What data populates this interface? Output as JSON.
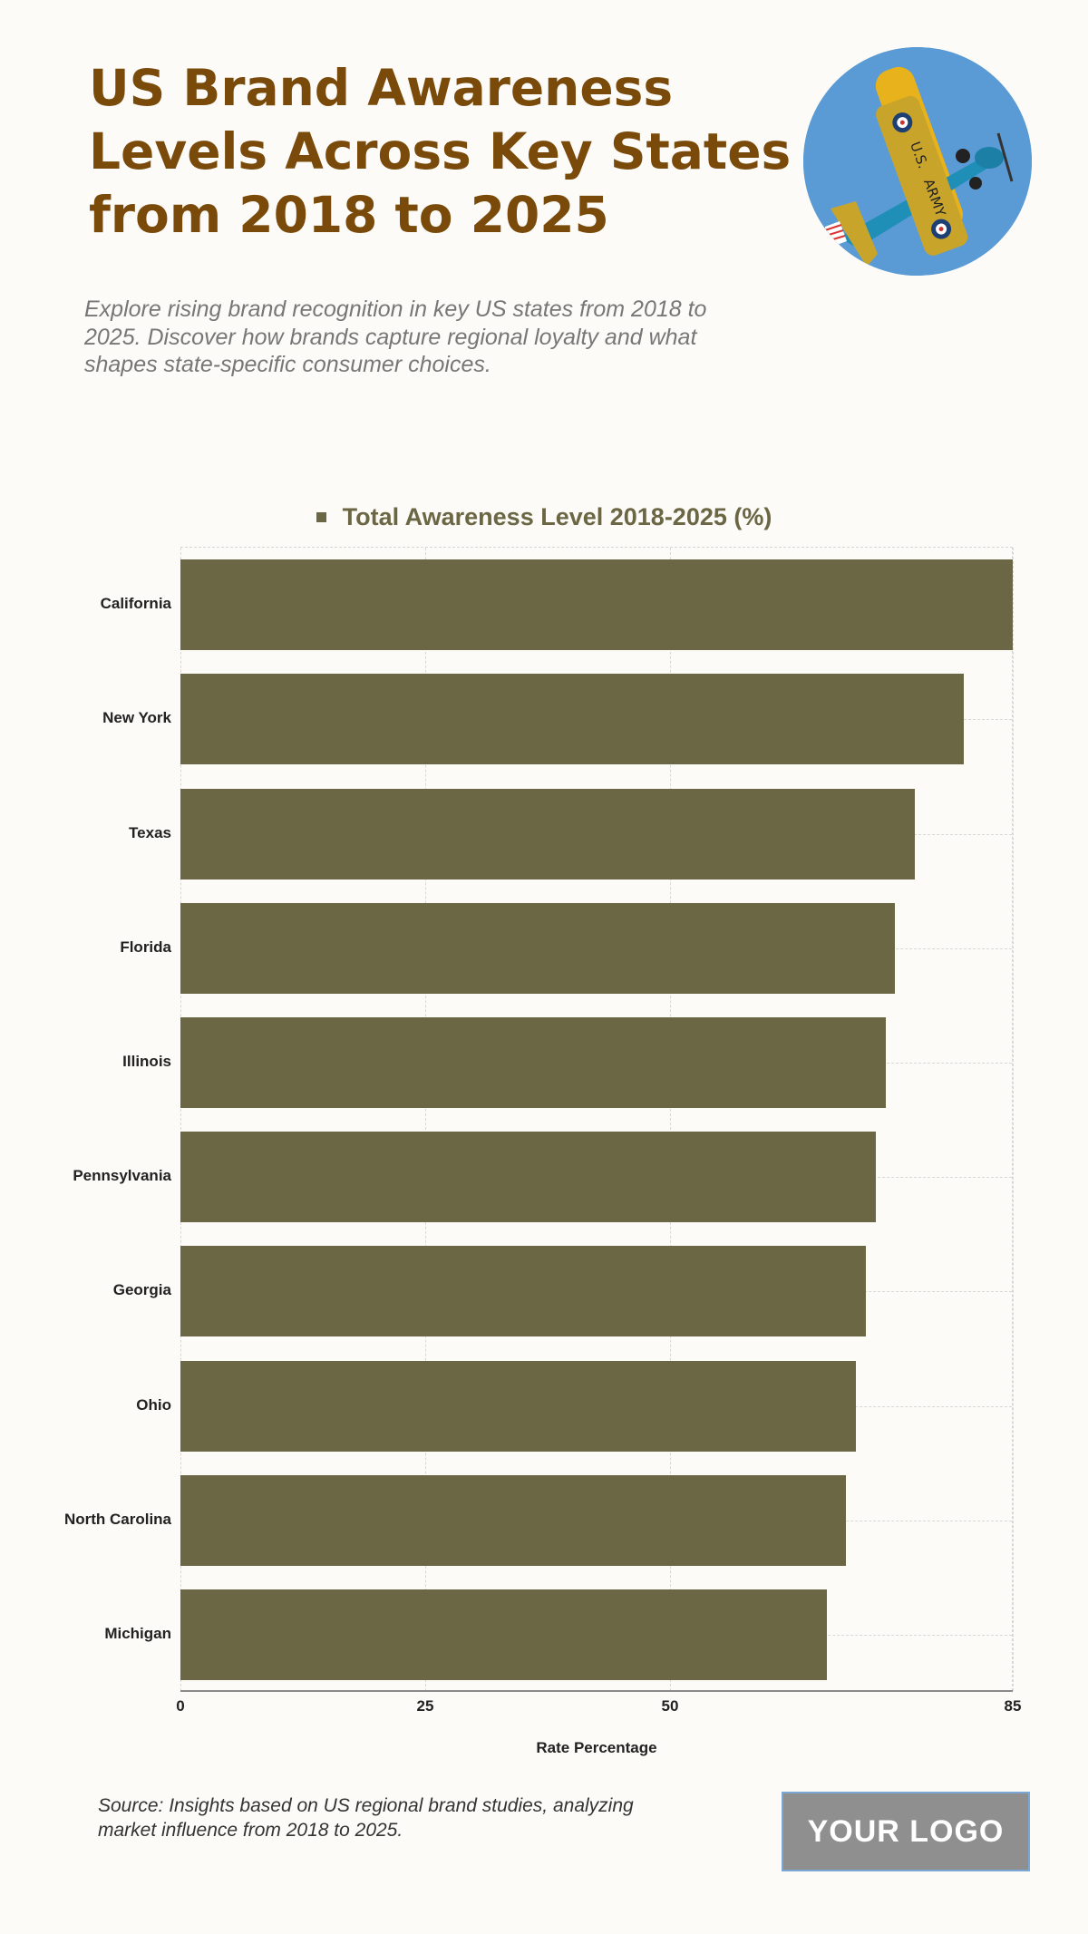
{
  "header": {
    "title_lines": [
      "US Brand Awareness",
      "Levels Across Key States",
      "from 2018 to 2025"
    ],
    "description_lines": [
      "Explore rising brand recognition in key US states from 2018 to",
      "2025. Discover how brands capture regional loyalty and what",
      "shapes state-specific consumer choices."
    ],
    "hero_image": "biplane-icon"
  },
  "colors": {
    "title": "#7a4a0a",
    "bar": "#6b6644",
    "background": "#fcfbf7",
    "description": "#777777",
    "hero_sky": "#5b9bd5",
    "logo_bg": "#8f8f8f",
    "logo_border": "#7aa7d6"
  },
  "chart_data": {
    "type": "bar",
    "orientation": "horizontal",
    "title": "Total Awareness Level 2018-2025 (%)",
    "legend": [
      "Total Awareness Level 2018-2025 (%)"
    ],
    "legend_position": "top",
    "categories": [
      "California",
      "New York",
      "Texas",
      "Florida",
      "Illinois",
      "Pennsylvania",
      "Georgia",
      "Ohio",
      "North Carolina",
      "Michigan"
    ],
    "series": [
      {
        "name": "Total Awareness Level 2018-2025 (%)",
        "values": [
          85,
          80,
          75,
          73,
          72,
          71,
          70,
          69,
          68,
          66
        ]
      }
    ],
    "xlabel": "Rate Percentage",
    "ylabel": "",
    "xlim": [
      0,
      85
    ],
    "xticks": [
      0,
      25,
      50,
      85
    ],
    "grid": true
  },
  "footer": {
    "source_lines": [
      "Source: Insights based on US regional brand studies, analyzing",
      "market influence from 2018 to 2025."
    ],
    "logo_text": "YOUR LOGO"
  }
}
